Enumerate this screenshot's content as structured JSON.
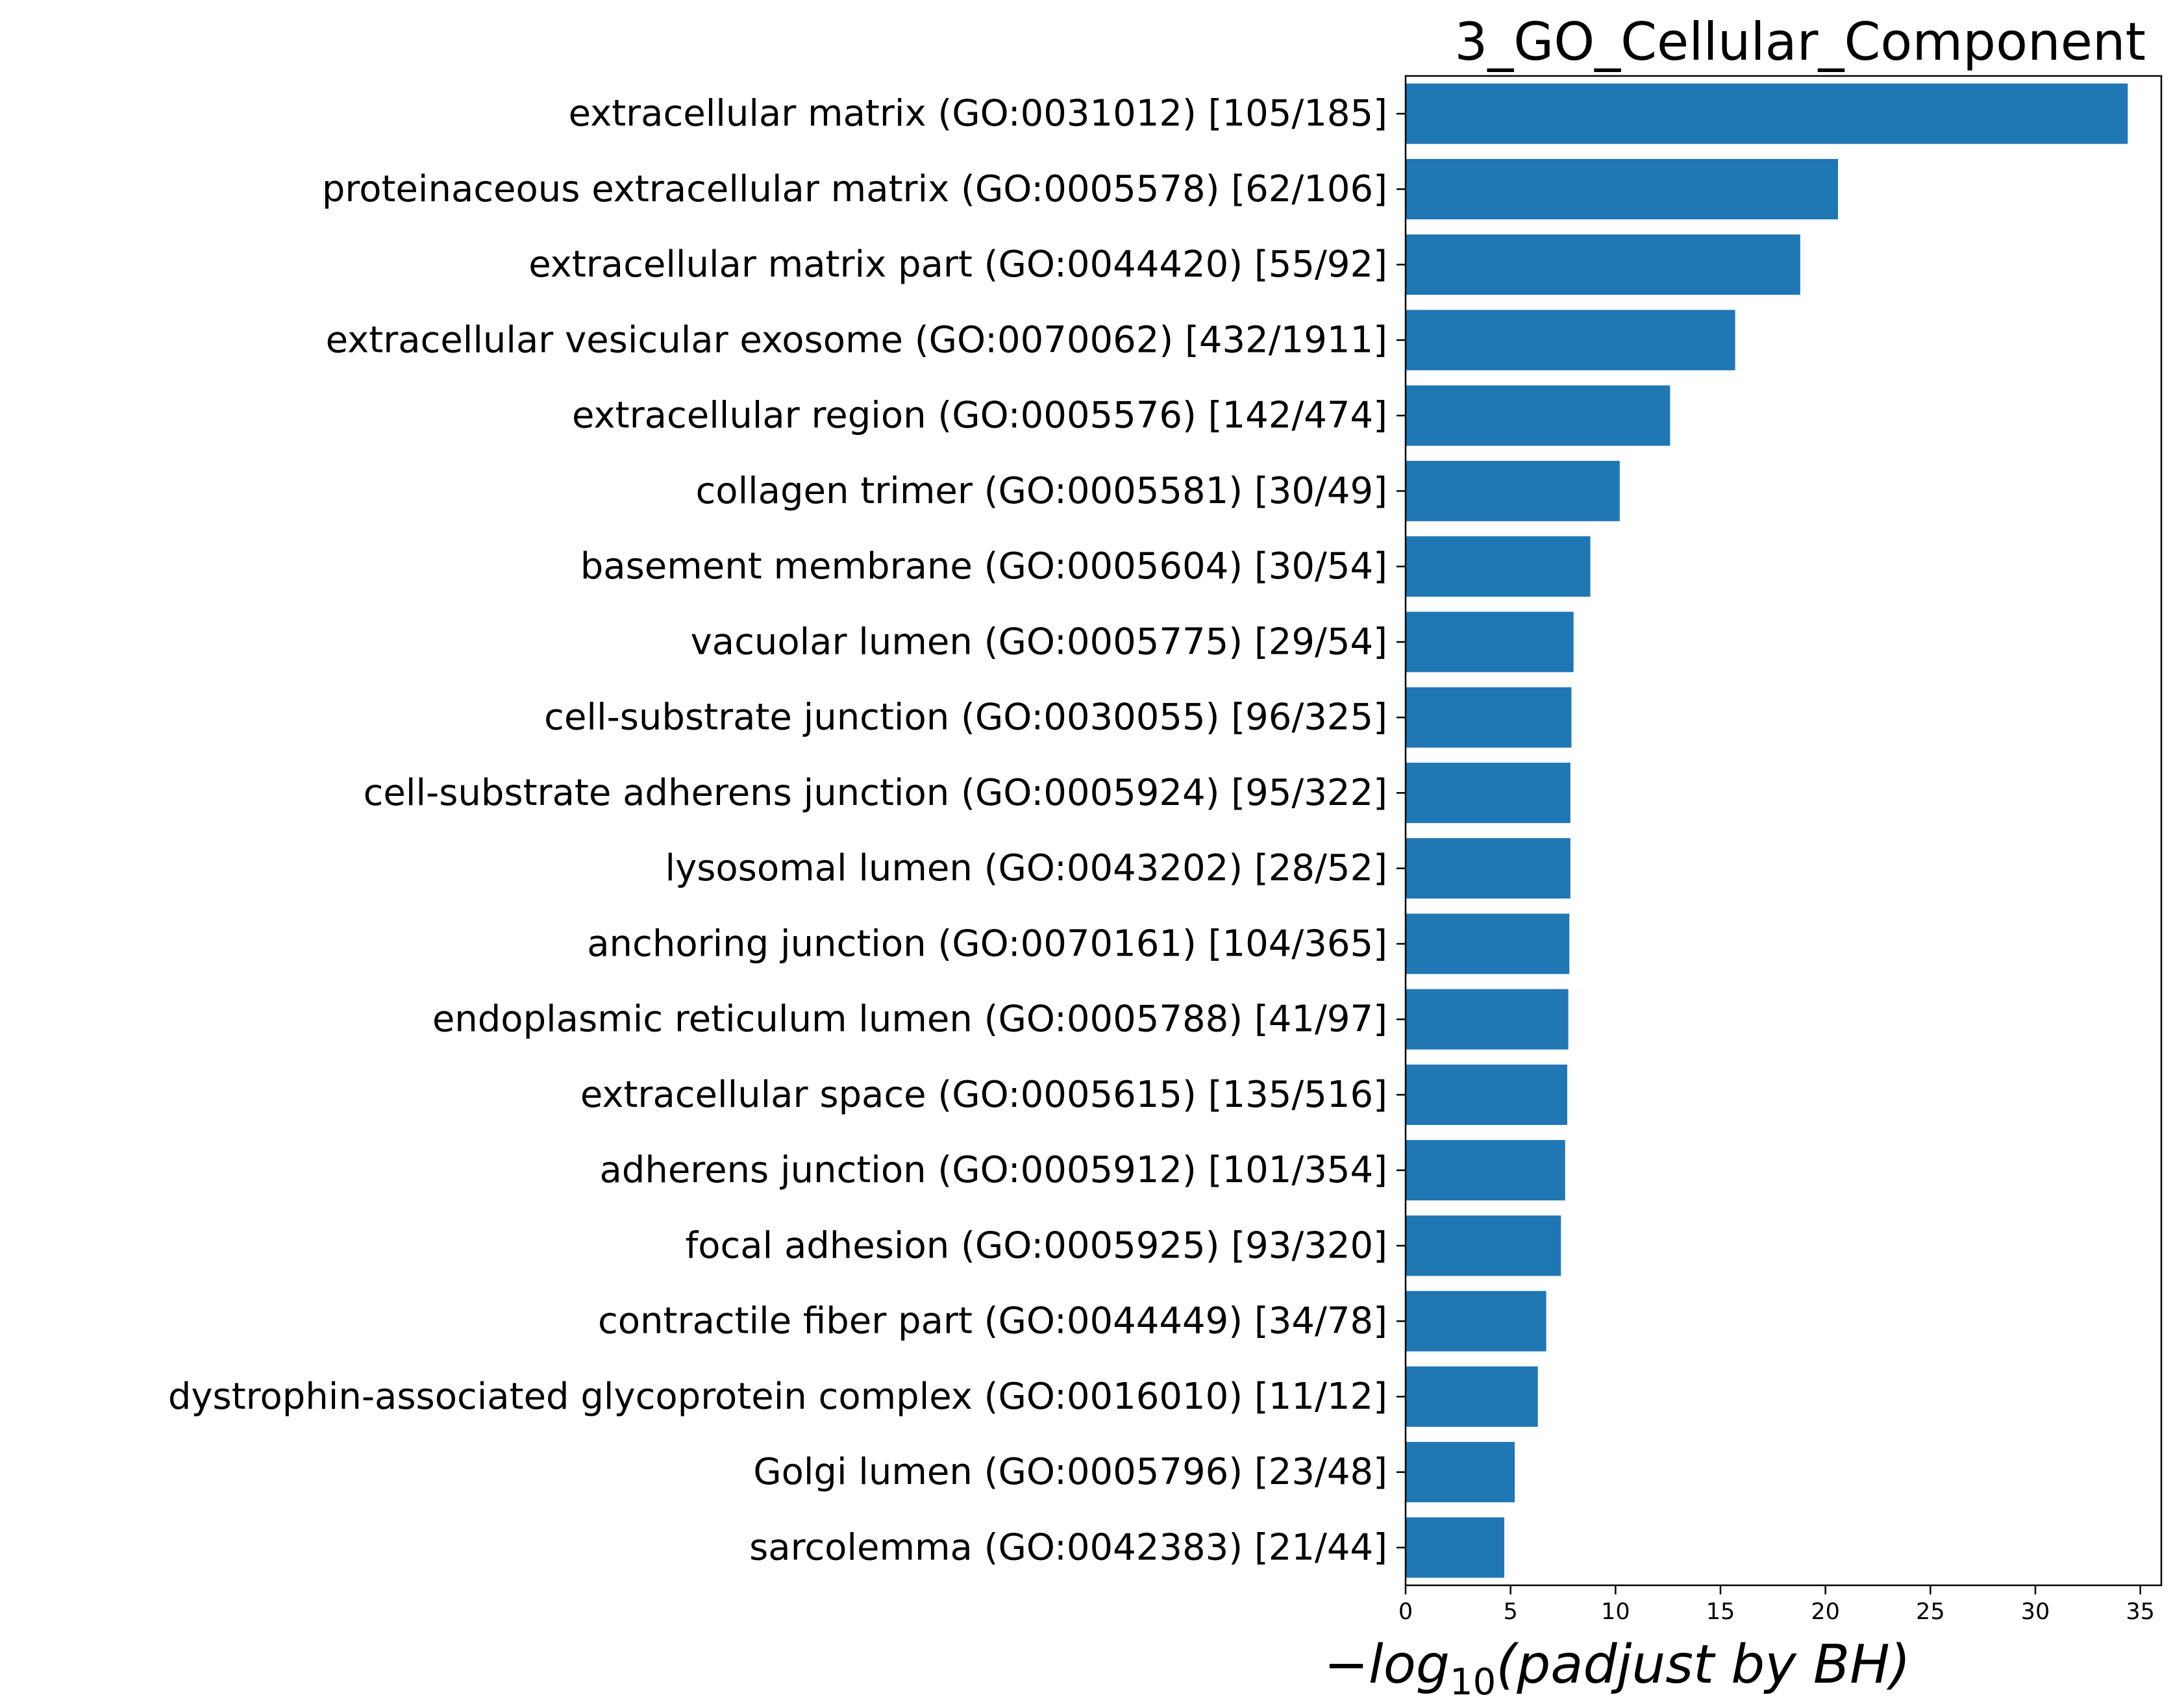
{
  "chart_data": {
    "type": "bar",
    "orientation": "horizontal",
    "title": "3_GO_Cellular_Component",
    "xlabel": {
      "prefix": "−",
      "log": "log",
      "base": "10",
      "body": "(padjust by BH)"
    },
    "ylabel": "",
    "xlim": [
      0,
      36
    ],
    "xticks": [
      0,
      5,
      10,
      15,
      20,
      25,
      30,
      35
    ],
    "grid": false,
    "legend": "none",
    "bar_color": "#1f77b4",
    "categories": [
      "extracellular matrix (GO:0031012) [105/185]",
      "proteinaceous extracellular matrix (GO:0005578) [62/106]",
      "extracellular matrix part (GO:0044420) [55/92]",
      "extracellular vesicular exosome (GO:0070062) [432/1911]",
      "extracellular region (GO:0005576) [142/474]",
      "collagen trimer (GO:0005581) [30/49]",
      "basement membrane (GO:0005604) [30/54]",
      "vacuolar lumen (GO:0005775) [29/54]",
      "cell-substrate junction (GO:0030055) [96/325]",
      "cell-substrate adherens junction (GO:0005924) [95/322]",
      "lysosomal lumen (GO:0043202) [28/52]",
      "anchoring junction (GO:0070161) [104/365]",
      "endoplasmic reticulum lumen (GO:0005788) [41/97]",
      "extracellular space (GO:0005615) [135/516]",
      "adherens junction (GO:0005912) [101/354]",
      "focal adhesion (GO:0005925) [93/320]",
      "contractile fiber part (GO:0044449) [34/78]",
      "dystrophin-associated glycoprotein complex (GO:0016010) [11/12]",
      "Golgi lumen (GO:0005796) [23/48]",
      "sarcolemma (GO:0042383) [21/44]"
    ],
    "values": [
      34.4,
      20.6,
      18.8,
      15.7,
      12.6,
      10.2,
      8.8,
      8.0,
      7.9,
      7.85,
      7.85,
      7.8,
      7.75,
      7.7,
      7.6,
      7.4,
      6.7,
      6.3,
      5.2,
      4.7
    ]
  }
}
